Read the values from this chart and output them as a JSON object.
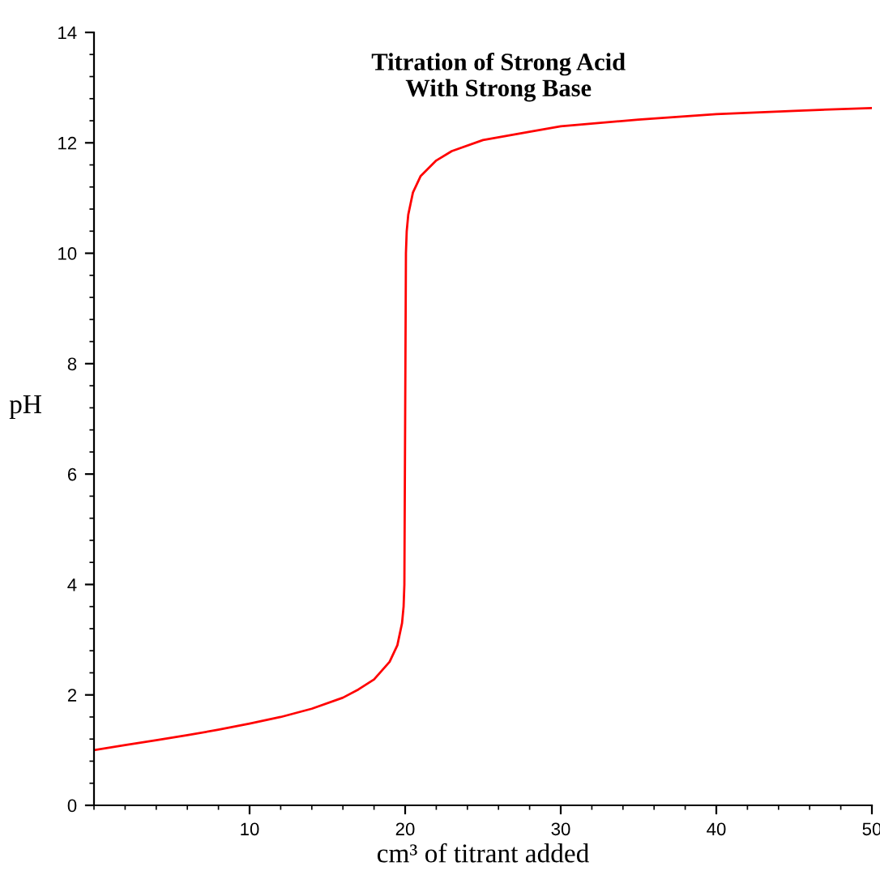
{
  "chart_data": {
    "type": "line",
    "title": "Titration of Strong Acid\nWith Strong Base",
    "xlabel": "cm³ of titrant added",
    "ylabel": "pH",
    "x": [
      0,
      2,
      4,
      6,
      8,
      10,
      12,
      14,
      16,
      17,
      18,
      19,
      19.5,
      19.8,
      19.9,
      19.95,
      20,
      20.05,
      20.1,
      20.2,
      20.5,
      21,
      22,
      23,
      25,
      28,
      30,
      35,
      40,
      45,
      50
    ],
    "series": [
      {
        "color": "#ff0000",
        "values": [
          1.0,
          1.09,
          1.18,
          1.27,
          1.37,
          1.48,
          1.6,
          1.75,
          1.95,
          2.1,
          2.28,
          2.6,
          2.9,
          3.3,
          3.6,
          4.0,
          7.0,
          10.0,
          10.4,
          10.7,
          11.1,
          11.4,
          11.68,
          11.85,
          12.05,
          12.2,
          12.3,
          12.42,
          12.52,
          12.58,
          12.63
        ]
      }
    ],
    "xlim": [
      0,
      50
    ],
    "ylim": [
      0,
      14
    ],
    "xticks": [
      10,
      20,
      30,
      40,
      50
    ],
    "yticks": [
      0,
      2,
      4,
      6,
      8,
      10,
      12,
      14
    ],
    "grid": false,
    "legend": false,
    "marker": "none",
    "line_style": "solid"
  }
}
